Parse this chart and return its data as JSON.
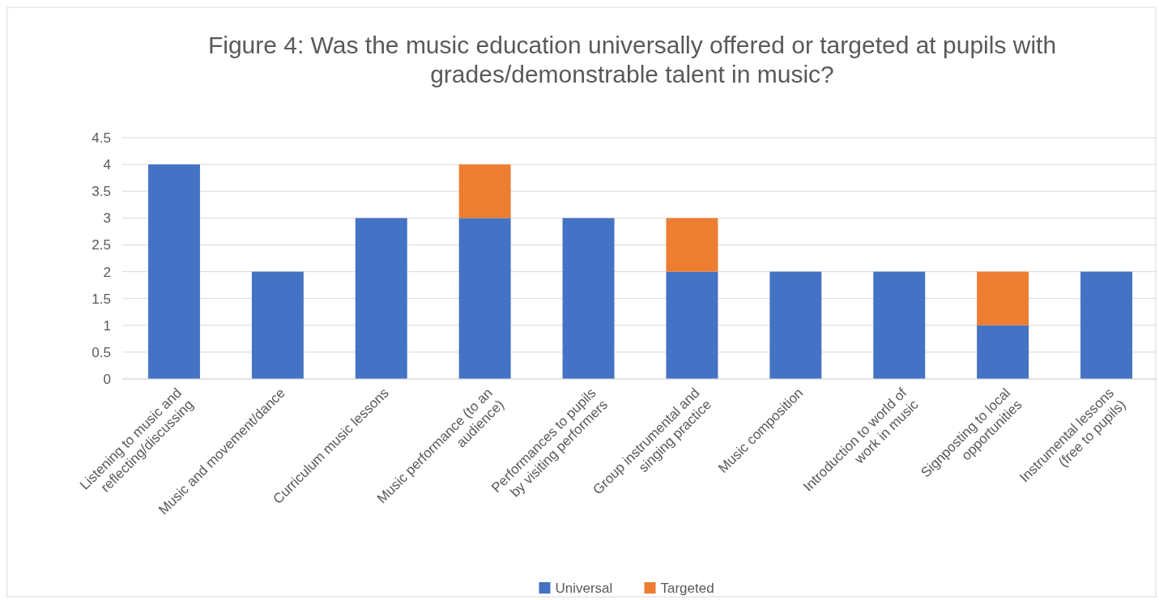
{
  "chart_data": {
    "type": "bar",
    "stacked": true,
    "title": "Figure 4: Was the music education universally offered or targeted at pupils with grades/demonstrable talent in music?",
    "categories": [
      "Listening to music and reflecting/discussing",
      "Music and movement/dance",
      "Curriculum music lessons",
      "Music performance (to an audience)",
      "Performances to pupils by visiting performers",
      "Group instrumental and singing practice",
      "Music composition",
      "Introduction to world of work in music",
      "Signposting to local opportunities",
      "Instrumental lessons (free to pupils)"
    ],
    "series": [
      {
        "name": "Universal",
        "color": "#4472c4",
        "values": [
          4,
          2,
          3,
          3,
          3,
          2,
          2,
          2,
          1,
          2
        ]
      },
      {
        "name": "Targeted",
        "color": "#ed7d31",
        "values": [
          0,
          0,
          0,
          1,
          0,
          1,
          0,
          0,
          1,
          0
        ]
      }
    ],
    "ylim": [
      0,
      4.5
    ],
    "yticks": [
      0,
      0.5,
      1,
      1.5,
      2,
      2.5,
      3,
      3.5,
      4,
      4.5
    ],
    "grid": "y",
    "legend": "bottom"
  }
}
